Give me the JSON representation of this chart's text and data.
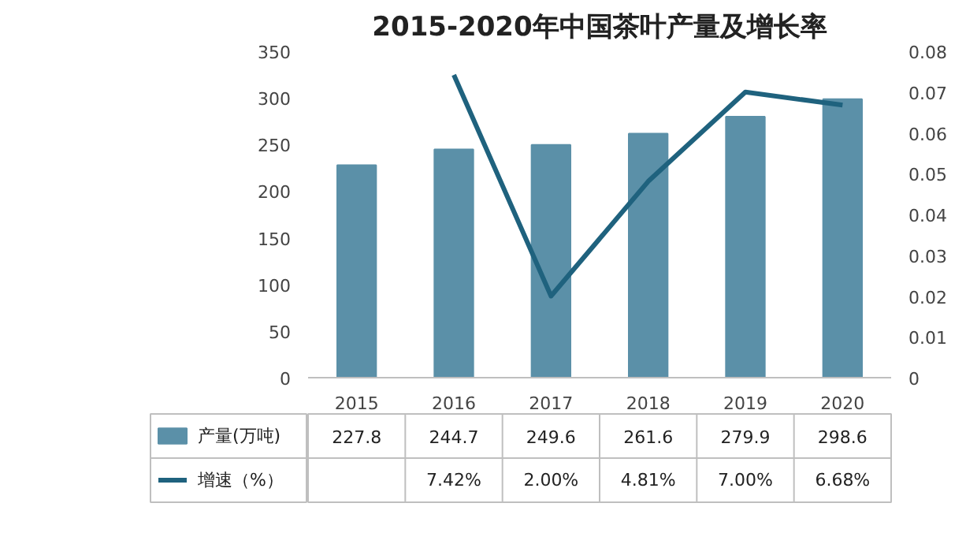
{
  "chart_data": {
    "type": "bar",
    "title": "2015-2020年中国茶叶产量及增长率",
    "categories": [
      "2015",
      "2016",
      "2017",
      "2018",
      "2019",
      "2020"
    ],
    "series": [
      {
        "name": "产量(万吨)",
        "color": "#5b90a8",
        "values": [
          227.8,
          244.7,
          249.6,
          261.6,
          279.9,
          298.6
        ],
        "data_labels": true
      },
      {
        "name": "增速（%）",
        "type": "line",
        "axis": "y2",
        "color": "#1f627e",
        "values": [
          null,
          0.0742,
          0.02,
          0.0481,
          0.07,
          0.0668
        ],
        "value_labels": [
          null,
          "7.42%",
          "2.00%",
          "4.81%",
          "7.00%",
          "6.68%"
        ]
      }
    ],
    "ylim": [
      0,
      350
    ],
    "yticks": [
      0,
      50,
      100,
      150,
      200,
      250,
      300,
      350
    ],
    "y2lim": [
      0,
      0.08
    ],
    "y2ticks": [
      0,
      {
        "value": 0.01,
        "label": "0.01"
      },
      {
        "value": 0.02,
        "label": "0.02"
      },
      {
        "value": 0.03,
        "label": "0.03"
      },
      {
        "value": 0.04,
        "label": "0.04"
      },
      {
        "value": 0.05,
        "label": "0.05"
      },
      {
        "value": 0.06,
        "label": "0.06"
      },
      {
        "value": 0.07,
        "label": "0.07"
      },
      {
        "value": 0.08,
        "label": "0.08"
      }
    ],
    "grid": false,
    "legend": "bottom"
  }
}
